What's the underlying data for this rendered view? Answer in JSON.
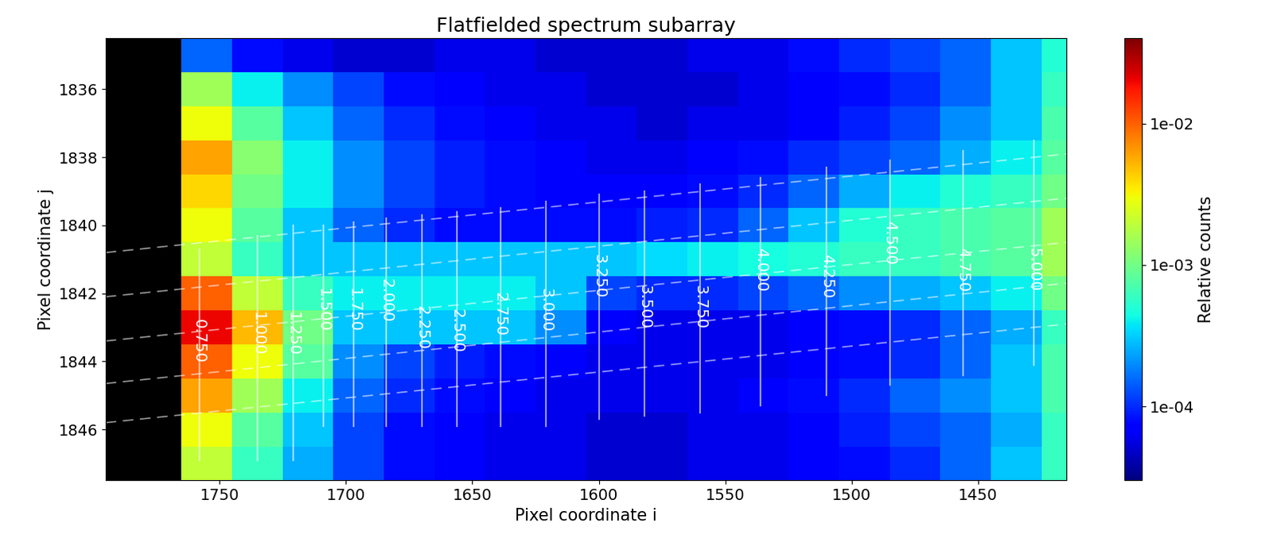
{
  "chart_data": {
    "type": "heatmap",
    "title": "Flatfielded spectrum subarray",
    "x_label": "Pixel coordinate i",
    "y_label": "Pixel coordinate j",
    "xlim": [
      1795,
      1415
    ],
    "ylim": [
      1847.5,
      1834.5
    ],
    "xticks": [
      1750,
      1700,
      1650,
      1600,
      1550,
      1500,
      1450
    ],
    "yticks": [
      1836,
      1838,
      1840,
      1842,
      1844,
      1846
    ],
    "x_edges": [
      1795,
      1765,
      1745,
      1725,
      1705,
      1685,
      1665,
      1645,
      1625,
      1605,
      1585,
      1565,
      1545,
      1525,
      1505,
      1485,
      1465,
      1445,
      1425,
      1415
    ],
    "y_edges": [
      1834.5,
      1835.5,
      1836.5,
      1837.5,
      1838.5,
      1839.5,
      1840.5,
      1841.5,
      1842.5,
      1843.5,
      1844.5,
      1845.5,
      1846.5,
      1847.5
    ],
    "cells": [
      [
        0,
        0.00015,
        8e-05,
        6e-05,
        5e-05,
        5e-05,
        6e-05,
        6e-05,
        5e-05,
        5e-05,
        5e-05,
        6e-05,
        6e-05,
        8e-05,
        0.0001,
        0.00012,
        0.00015,
        0.0003,
        0.0005
      ],
      [
        0,
        0.0015,
        0.0004,
        0.0002,
        0.00012,
        8e-05,
        7e-05,
        6e-05,
        6e-05,
        5e-05,
        5e-05,
        5e-05,
        6e-05,
        7e-05,
        8e-05,
        0.0001,
        0.00015,
        0.0003,
        0.0006
      ],
      [
        0,
        0.003,
        0.0008,
        0.0003,
        0.00015,
        0.0001,
        8e-05,
        7e-05,
        6e-05,
        6e-05,
        5e-05,
        6e-05,
        6e-05,
        7e-05,
        9e-05,
        0.00012,
        0.0002,
        0.0003,
        0.0007
      ],
      [
        0,
        0.006,
        0.0012,
        0.0004,
        0.0002,
        0.00012,
        9e-05,
        8e-05,
        7e-05,
        6e-05,
        6e-05,
        7e-05,
        8e-05,
        0.0001,
        0.00012,
        0.00015,
        0.00025,
        0.0004,
        0.0008
      ],
      [
        0,
        0.004,
        0.001,
        0.0004,
        0.0002,
        0.00012,
        9e-05,
        8e-05,
        7e-05,
        7e-05,
        7e-05,
        8e-05,
        0.0001,
        0.00015,
        0.00025,
        0.0004,
        0.0005,
        0.0006,
        0.001
      ],
      [
        0,
        0.003,
        0.0008,
        0.0003,
        0.00015,
        0.0001,
        8e-05,
        8e-05,
        8e-05,
        8e-05,
        9e-05,
        0.0001,
        0.00015,
        0.0003,
        0.0005,
        0.0006,
        0.0007,
        0.0008,
        0.0015
      ],
      [
        0,
        0.002,
        0.0006,
        0.0003,
        0.0003,
        0.0003,
        0.0003,
        0.0003,
        0.0003,
        0.0003,
        0.00035,
        0.0004,
        0.00045,
        0.0005,
        0.0006,
        0.0006,
        0.0007,
        0.0008,
        0.0015
      ],
      [
        0,
        0.01,
        0.002,
        0.0006,
        0.0004,
        0.0004,
        0.0004,
        0.0004,
        0.0003,
        0.00012,
        0.0001,
        0.0001,
        0.00012,
        0.00015,
        0.0002,
        0.00025,
        0.0003,
        0.0004,
        0.001
      ],
      [
        0,
        0.02,
        0.005,
        0.001,
        0.0003,
        0.0003,
        0.0003,
        0.0003,
        0.0002,
        7e-05,
        6e-05,
        6e-05,
        6e-05,
        7e-05,
        8e-05,
        0.0001,
        0.00015,
        0.00025,
        0.0006
      ],
      [
        0,
        0.01,
        0.003,
        0.0008,
        0.0002,
        0.00012,
        9e-05,
        8e-05,
        7e-05,
        6e-05,
        6e-05,
        6e-05,
        6e-05,
        7e-05,
        8e-05,
        0.0001,
        0.00015,
        0.0003,
        0.0007
      ],
      [
        0,
        0.006,
        0.0015,
        0.0004,
        0.00015,
        0.0001,
        8e-05,
        7e-05,
        6e-05,
        6e-05,
        6e-05,
        6e-05,
        7e-05,
        8e-05,
        0.0001,
        0.00015,
        0.0002,
        0.0003,
        0.0007
      ],
      [
        0,
        0.003,
        0.0008,
        0.0003,
        0.00012,
        8e-05,
        7e-05,
        6e-05,
        6e-05,
        5e-05,
        5e-05,
        6e-05,
        6e-05,
        7e-05,
        9e-05,
        0.00012,
        0.00015,
        0.00025,
        0.0006
      ],
      [
        0,
        0.002,
        0.0006,
        0.00025,
        0.00012,
        8e-05,
        7e-05,
        6e-05,
        6e-05,
        5e-05,
        5e-05,
        6e-05,
        6e-05,
        7e-05,
        8e-05,
        0.0001,
        0.00015,
        0.0003,
        0.0006
      ]
    ],
    "colorbar": {
      "label": "Relative counts",
      "log": true,
      "range": [
        3e-05,
        0.04
      ],
      "ticks": [
        {
          "value": 0.0001,
          "label": "1e-04"
        },
        {
          "value": 0.001,
          "label": "1e-03"
        },
        {
          "value": 0.01,
          "label": "1e-02"
        }
      ]
    },
    "wavelength_lines": [
      {
        "label": "0.750",
        "i": 1758,
        "j": [
          1840.7,
          1846.9
        ],
        "label_j": 1843.4
      },
      {
        "label": "1.000",
        "i": 1735,
        "j": [
          1840.3,
          1846.9
        ],
        "label_j": 1843.2
      },
      {
        "label": "1.250",
        "i": 1721,
        "j": [
          1840.0,
          1846.9
        ],
        "label_j": 1843.2
      },
      {
        "label": "1.500",
        "i": 1709,
        "j": [
          1840.0,
          1845.9
        ],
        "label_j": 1842.5
      },
      {
        "label": "1.750",
        "i": 1697,
        "j": [
          1839.9,
          1845.9
        ],
        "label_j": 1842.5
      },
      {
        "label": "2.000",
        "i": 1684,
        "j": [
          1839.8,
          1845.9
        ],
        "label_j": 1842.2
      },
      {
        "label": "2.250",
        "i": 1670,
        "j": [
          1839.7,
          1845.9
        ],
        "label_j": 1843.0
      },
      {
        "label": "2.500",
        "i": 1656,
        "j": [
          1839.6,
          1845.9
        ],
        "label_j": 1843.1
      },
      {
        "label": "2.750",
        "i": 1639,
        "j": [
          1839.5,
          1845.9
        ],
        "label_j": 1842.6
      },
      {
        "label": "3.000",
        "i": 1621,
        "j": [
          1839.3,
          1845.9
        ],
        "label_j": 1842.5
      },
      {
        "label": "3.250",
        "i": 1600,
        "j": [
          1839.1,
          1845.7
        ],
        "label_j": 1841.5
      },
      {
        "label": "3.500",
        "i": 1582,
        "j": [
          1839.0,
          1845.6
        ],
        "label_j": 1842.4
      },
      {
        "label": "3.750",
        "i": 1560,
        "j": [
          1838.8,
          1845.5
        ],
        "label_j": 1842.4
      },
      {
        "label": "4.000",
        "i": 1536,
        "j": [
          1838.6,
          1845.3
        ],
        "label_j": 1841.3
      },
      {
        "label": "4.250",
        "i": 1510,
        "j": [
          1838.3,
          1845.0
        ],
        "label_j": 1841.5
      },
      {
        "label": "4.500",
        "i": 1485,
        "j": [
          1838.1,
          1844.7
        ],
        "label_j": 1840.5
      },
      {
        "label": "4.750",
        "i": 1456,
        "j": [
          1837.8,
          1844.4
        ],
        "label_j": 1841.3
      },
      {
        "label": "5.000",
        "i": 1428,
        "j": [
          1837.5,
          1844.1
        ],
        "label_j": 1841.3
      }
    ],
    "trace_lines": [
      {
        "i": [
          1795,
          1415
        ],
        "j": [
          1840.8,
          1837.9
        ]
      },
      {
        "i": [
          1795,
          1415
        ],
        "j": [
          1842.1,
          1839.2
        ]
      },
      {
        "i": [
          1795,
          1415
        ],
        "j": [
          1843.4,
          1840.5
        ]
      },
      {
        "i": [
          1795,
          1415
        ],
        "j": [
          1844.65,
          1841.7
        ]
      },
      {
        "i": [
          1795,
          1415
        ],
        "j": [
          1845.8,
          1842.9
        ]
      }
    ]
  }
}
